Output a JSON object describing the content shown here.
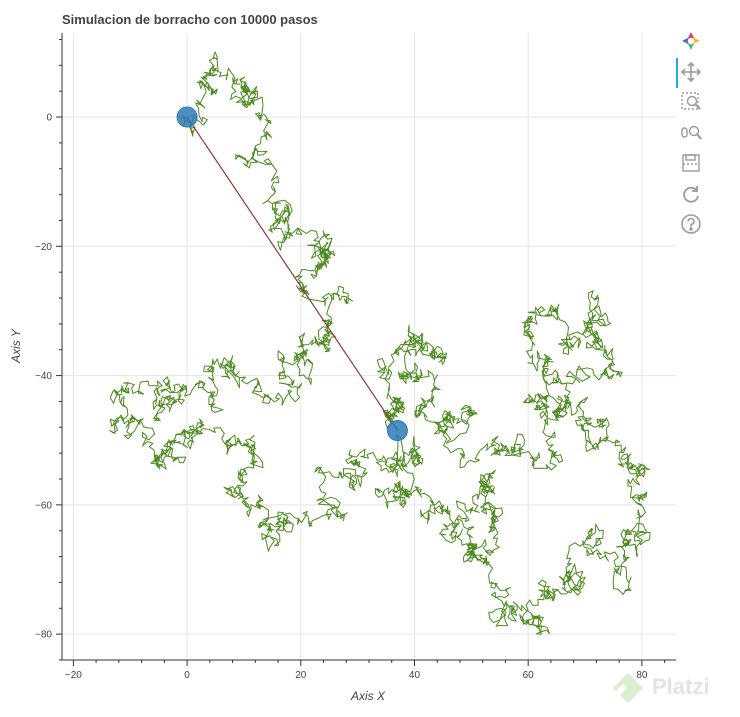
{
  "chart_data": {
    "type": "line",
    "title": "Simulacion de borracho con 10000 pasos",
    "xlabel": "Axis X",
    "ylabel": "Axis Y",
    "xlim": [
      -22,
      86
    ],
    "ylim": [
      -84,
      13
    ],
    "xticks": [
      -20,
      0,
      20,
      40,
      60,
      80
    ],
    "yticks": [
      0,
      -20,
      -40,
      -60,
      -80
    ],
    "grid": true,
    "series": [
      {
        "kind": "walk",
        "color": "#4d8a1f",
        "steps": 10000,
        "anchors": [
          [
            0,
            0
          ],
          [
            4,
            5
          ],
          [
            8,
            7
          ],
          [
            12,
            4
          ],
          [
            14,
            -3
          ],
          [
            15,
            -9
          ],
          [
            16,
            -14
          ],
          [
            20,
            -18
          ],
          [
            24,
            -20
          ],
          [
            22,
            -24
          ],
          [
            26,
            -28
          ],
          [
            24,
            -34
          ],
          [
            20,
            -36
          ],
          [
            17,
            -40
          ],
          [
            12,
            -41
          ],
          [
            6,
            -38
          ],
          [
            2,
            -42
          ],
          [
            -3,
            -44
          ],
          [
            -8,
            -42
          ],
          [
            -13,
            -47
          ],
          [
            -8,
            -50
          ],
          [
            -2,
            -52
          ],
          [
            2,
            -48
          ],
          [
            8,
            -50
          ],
          [
            12,
            -54
          ],
          [
            10,
            -60
          ],
          [
            14,
            -66
          ],
          [
            18,
            -62
          ],
          [
            24,
            -60
          ],
          [
            28,
            -56
          ],
          [
            34,
            -54
          ],
          [
            38,
            -50
          ],
          [
            40,
            -52
          ],
          [
            38,
            -58
          ],
          [
            42,
            -62
          ],
          [
            46,
            -66
          ],
          [
            48,
            -60
          ],
          [
            52,
            -56
          ],
          [
            54,
            -62
          ],
          [
            50,
            -68
          ],
          [
            54,
            -72
          ],
          [
            58,
            -76
          ],
          [
            62,
            -78
          ],
          [
            64,
            -74
          ],
          [
            68,
            -70
          ],
          [
            72,
            -66
          ],
          [
            76,
            -70
          ],
          [
            80,
            -64
          ],
          [
            78,
            -58
          ],
          [
            76,
            -52
          ],
          [
            70,
            -48
          ],
          [
            66,
            -44
          ],
          [
            62,
            -40
          ],
          [
            60,
            -34
          ],
          [
            64,
            -30
          ],
          [
            68,
            -34
          ],
          [
            72,
            -30
          ],
          [
            74,
            -36
          ],
          [
            70,
            -40
          ],
          [
            66,
            -44
          ],
          [
            62,
            -48
          ],
          [
            58,
            -52
          ],
          [
            54,
            -50
          ],
          [
            50,
            -46
          ],
          [
            46,
            -48
          ],
          [
            42,
            -44
          ],
          [
            40,
            -40
          ],
          [
            42,
            -34
          ],
          [
            38,
            -36
          ],
          [
            34,
            -40
          ],
          [
            36,
            -46
          ],
          [
            37,
            -48.5
          ]
        ]
      }
    ],
    "start_point": [
      0,
      0
    ],
    "end_point": [
      37,
      -48.5
    ],
    "marker_color": "#2f7ab9",
    "connector_color": "#8b3a3a"
  },
  "toolbar": {
    "tools": [
      {
        "name": "bokeh-logo-icon"
      },
      {
        "name": "pan-tool-icon"
      },
      {
        "name": "box-zoom-tool-icon"
      },
      {
        "name": "wheel-zoom-tool-icon"
      },
      {
        "name": "save-tool-icon"
      },
      {
        "name": "reset-tool-icon"
      },
      {
        "name": "help-tool-icon"
      }
    ]
  },
  "watermark": {
    "text": "Platzi"
  }
}
